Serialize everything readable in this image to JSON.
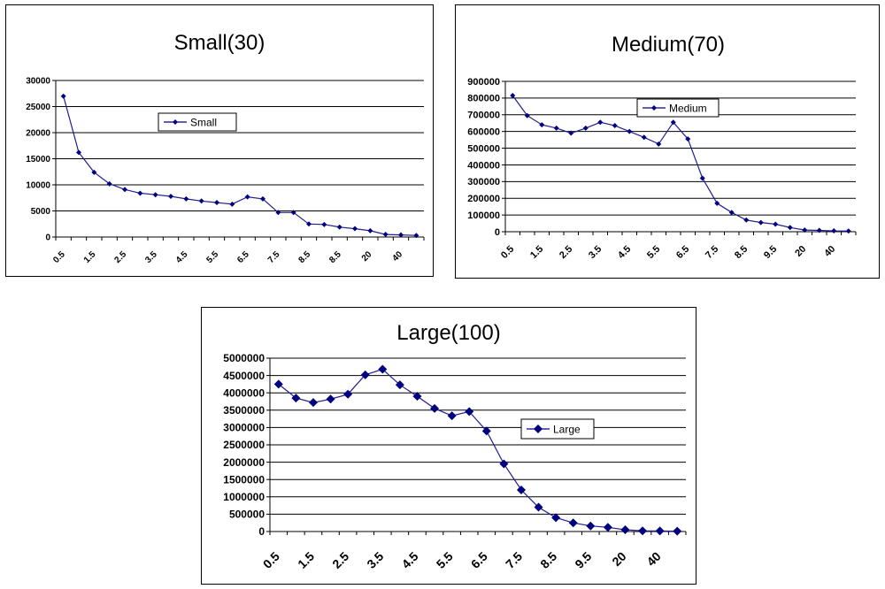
{
  "chart_data": [
    {
      "id": "small",
      "type": "line",
      "title": "Small(30)",
      "legend": "Small",
      "ylim": [
        0,
        30000
      ],
      "ystep": 5000,
      "x_tick_labels": [
        "0.5",
        "1.5",
        "2.5",
        "3.5",
        "4.5",
        "5.5",
        "6.5",
        "7.5",
        "8.5",
        "8.5",
        "20",
        "40"
      ],
      "values": [
        27000,
        16200,
        12400,
        10200,
        9100,
        8400,
        8100,
        7800,
        7300,
        6900,
        6600,
        6300,
        7700,
        7300,
        4700,
        4700,
        2500,
        2400,
        1900,
        1600,
        1200,
        500,
        400,
        300
      ],
      "color": "#000080"
    },
    {
      "id": "medium",
      "type": "line",
      "title": "Medium(70)",
      "legend": "Medium",
      "ylim": [
        0,
        900000
      ],
      "ystep": 100000,
      "x_tick_labels": [
        "0.5",
        "1.5",
        "2.5",
        "3.5",
        "4.5",
        "5.5",
        "6.5",
        "7.5",
        "8.5",
        "9.5",
        "20",
        "40"
      ],
      "values": [
        815000,
        695000,
        640000,
        620000,
        590000,
        620000,
        655000,
        635000,
        600000,
        565000,
        525000,
        655000,
        555000,
        320000,
        170000,
        115000,
        70000,
        55000,
        45000,
        25000,
        10000,
        8000,
        5000,
        4000
      ],
      "color": "#000080"
    },
    {
      "id": "large",
      "type": "line",
      "title": "Large(100)",
      "legend": "Large",
      "ylim": [
        0,
        5000000
      ],
      "ystep": 500000,
      "x_tick_labels": [
        "0.5",
        "1.5",
        "2.5",
        "3.5",
        "4.5",
        "5.5",
        "6.5",
        "7.5",
        "8.5",
        "9.5",
        "20",
        "40"
      ],
      "values": [
        4250000,
        3850000,
        3720000,
        3820000,
        3960000,
        4520000,
        4680000,
        4230000,
        3900000,
        3550000,
        3340000,
        3460000,
        2900000,
        1950000,
        1200000,
        700000,
        400000,
        250000,
        160000,
        120000,
        50000,
        20000,
        15000,
        10000
      ],
      "color": "#000080"
    }
  ]
}
